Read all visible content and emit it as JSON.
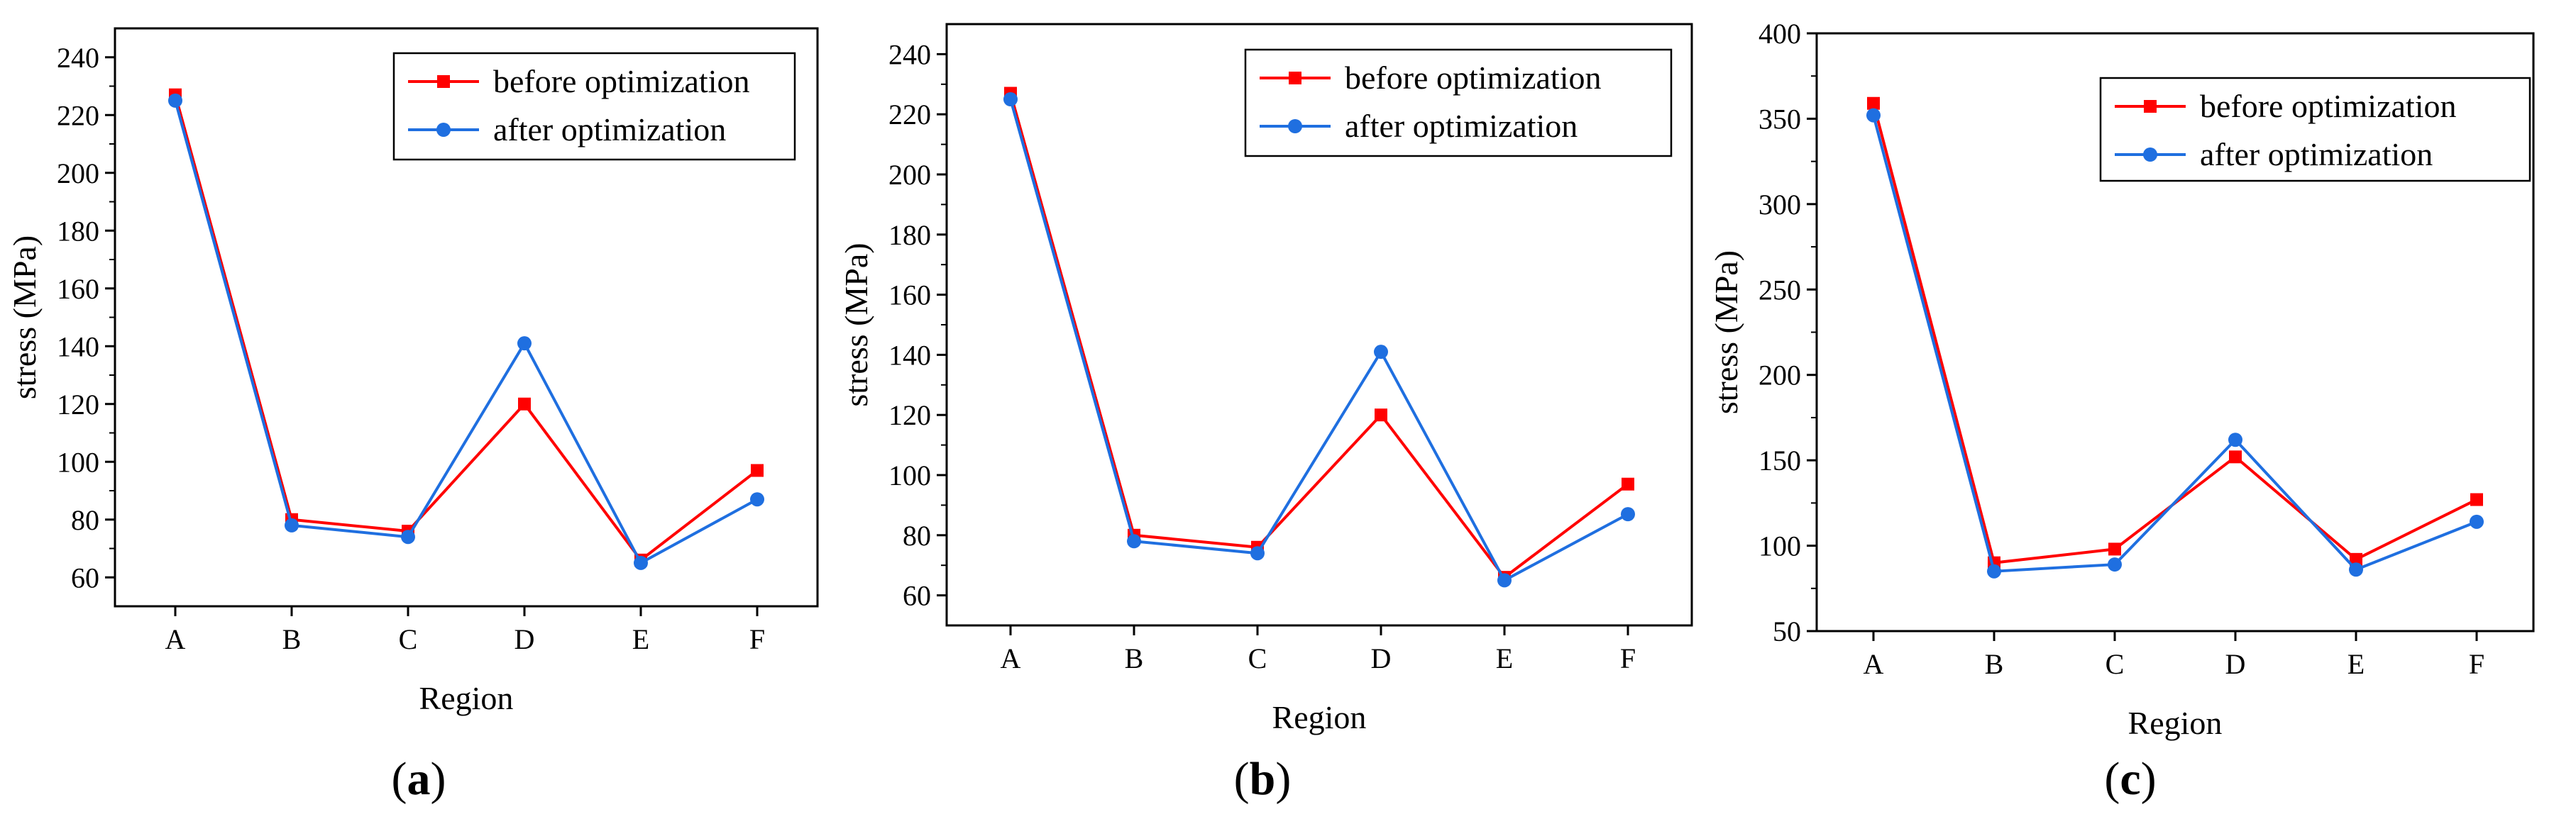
{
  "chart_data": [
    {
      "type": "line",
      "panel_label": {
        "open": "(",
        "letter": "a",
        "close": ")"
      },
      "categories": [
        "A",
        "B",
        "C",
        "D",
        "E",
        "F"
      ],
      "xlabel": "Region",
      "ylabel": "stress (MPa)",
      "ylim": [
        50,
        250
      ],
      "yticks": [
        60,
        80,
        100,
        120,
        140,
        160,
        180,
        200,
        220,
        240
      ],
      "legend_position": "top-right",
      "series": [
        {
          "name": "before optimization",
          "color": "#ff0000",
          "marker": "square",
          "values": [
            227,
            80,
            76,
            120,
            66,
            97
          ]
        },
        {
          "name": "after optimization",
          "color": "#1f6fe0",
          "marker": "circle",
          "values": [
            225,
            78,
            74,
            141,
            65,
            87
          ]
        }
      ]
    },
    {
      "type": "line",
      "panel_label": {
        "open": "(",
        "letter": "b",
        "close": ")"
      },
      "categories": [
        "A",
        "B",
        "C",
        "D",
        "E",
        "F"
      ],
      "xlabel": "Region",
      "ylabel": "stress (MPa)",
      "ylim": [
        50,
        250
      ],
      "yticks": [
        60,
        80,
        100,
        120,
        140,
        160,
        180,
        200,
        220,
        240
      ],
      "legend_position": "top-right",
      "series": [
        {
          "name": "before optimization",
          "color": "#ff0000",
          "marker": "square",
          "values": [
            227,
            80,
            76,
            120,
            66,
            97
          ]
        },
        {
          "name": "after optimization",
          "color": "#1f6fe0",
          "marker": "circle",
          "values": [
            225,
            78,
            74,
            141,
            65,
            87
          ]
        }
      ]
    },
    {
      "type": "line",
      "panel_label": {
        "open": "(",
        "letter": "c",
        "close": ")"
      },
      "categories": [
        "A",
        "B",
        "C",
        "D",
        "E",
        "F"
      ],
      "xlabel": "Region",
      "ylabel": "stress (MPa)",
      "ylim": [
        50,
        400
      ],
      "yticks": [
        50,
        100,
        150,
        200,
        250,
        300,
        350,
        400
      ],
      "legend_position": "top-right",
      "series": [
        {
          "name": "before optimization",
          "color": "#ff0000",
          "marker": "square",
          "values": [
            359,
            90,
            98,
            152,
            92,
            127
          ]
        },
        {
          "name": "after optimization",
          "color": "#1f6fe0",
          "marker": "circle",
          "values": [
            352,
            85,
            89,
            162,
            86,
            114
          ]
        }
      ]
    }
  ]
}
